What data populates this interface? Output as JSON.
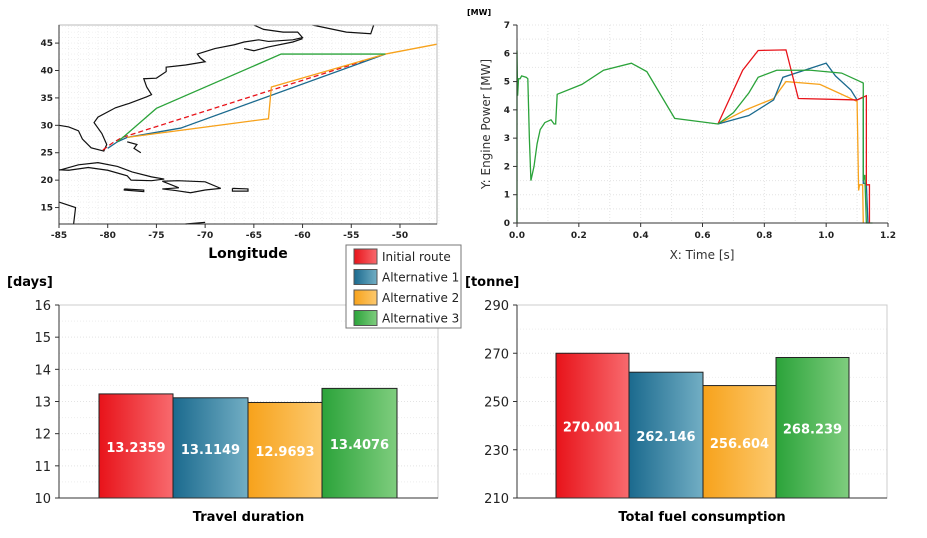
{
  "legend": {
    "position": "center",
    "items": [
      {
        "label": "Initial route",
        "color": "#e8131a"
      },
      {
        "label": "Alternative 1",
        "color": "#1b6a8e"
      },
      {
        "label": "Alternative 2",
        "color": "#f7a21b"
      },
      {
        "label": "Alternative 3",
        "color": "#2ba33a"
      }
    ]
  },
  "chart_data": [
    {
      "type": "line",
      "subtype": "map",
      "xlabel": "Longitude",
      "ylabel": "",
      "xlim": [
        -85,
        -46.2
      ],
      "ylim": [
        12,
        48.3
      ],
      "xticks": [
        -85,
        -80,
        -75,
        -70,
        -65,
        -60,
        -55,
        -50
      ],
      "yticks": [
        15,
        20,
        25,
        30,
        35,
        40,
        45
      ],
      "grid": true,
      "series": [
        {
          "name": "Initial route",
          "style": "dashed",
          "points": [
            [
              -80.5,
              25.5
            ],
            [
              -79.5,
              26.8
            ],
            [
              -78.5,
              27.8
            ],
            [
              -51.5,
              43
            ]
          ]
        },
        {
          "name": "Alternative 1",
          "points": [
            [
              -80,
              25.8
            ],
            [
              -79,
              27
            ],
            [
              -78,
              27.8
            ],
            [
              -72.5,
              29.5
            ],
            [
              -51.5,
              43
            ]
          ]
        },
        {
          "name": "Alternative 2",
          "points": [
            [
              -78,
              27.8
            ],
            [
              -63.5,
              31.2
            ],
            [
              -63.2,
              37
            ],
            [
              -51.5,
              43
            ],
            [
              -46.2,
              44.8
            ]
          ]
        },
        {
          "name": "Alternative 3",
          "points": [
            [
              -79,
              27
            ],
            [
              -78.3,
              28
            ],
            [
              -75,
              33.1
            ],
            [
              -62.2,
              43
            ],
            [
              -51.5,
              43
            ]
          ]
        }
      ]
    },
    {
      "type": "line",
      "unit": "[MW]",
      "xlabel": "X: Time [s]",
      "ylabel": "Y: Engine Power [MW]",
      "xlim": [
        0,
        1.2
      ],
      "ylim": [
        0,
        7
      ],
      "xticks": [
        "0.0",
        "0.2",
        "0.4",
        "0.6",
        "0.8",
        "1.0",
        "1.2"
      ],
      "yticks": [
        "0",
        "1",
        "2",
        "3",
        "4",
        "5",
        "6",
        "7"
      ],
      "grid": true,
      "series": [
        {
          "name": "Initial route",
          "points": [
            [
              0.65,
              3.5
            ],
            [
              0.73,
              5.4
            ],
            [
              0.78,
              6.1
            ],
            [
              0.87,
              6.12
            ],
            [
              0.91,
              4.4
            ],
            [
              1.1,
              4.35
            ],
            [
              1.12,
              4.45
            ],
            [
              1.13,
              4.5
            ],
            [
              1.13,
              1.35
            ],
            [
              1.14,
              1.35
            ],
            [
              1.14,
              0
            ]
          ]
        },
        {
          "name": "Alternative 1",
          "points": [
            [
              0.65,
              3.5
            ],
            [
              0.75,
              3.8
            ],
            [
              0.83,
              4.35
            ],
            [
              0.86,
              5.15
            ],
            [
              1.0,
              5.65
            ],
            [
              1.03,
              5.2
            ],
            [
              1.08,
              4.7
            ],
            [
              1.1,
              4.35
            ],
            [
              1.12,
              4.45
            ],
            [
              1.12,
              1.4
            ],
            [
              1.13,
              1.4
            ],
            [
              1.135,
              0
            ]
          ]
        },
        {
          "name": "Alternative 2",
          "points": [
            [
              0.65,
              3.5
            ],
            [
              0.74,
              4.0
            ],
            [
              0.83,
              4.4
            ],
            [
              0.87,
              5.0
            ],
            [
              0.98,
              4.9
            ],
            [
              1.04,
              4.6
            ],
            [
              1.1,
              4.3
            ],
            [
              1.105,
              1.15
            ],
            [
              1.108,
              1.35
            ],
            [
              1.118,
              1.35
            ],
            [
              1.12,
              0
            ]
          ]
        },
        {
          "name": "Alternative 3",
          "points": [
            [
              0,
              0
            ],
            [
              0,
              6.1
            ],
            [
              0.002,
              4.5
            ],
            [
              0.005,
              5.1
            ],
            [
              0.01,
              5.1
            ],
            [
              0.015,
              5.2
            ],
            [
              0.03,
              5.15
            ],
            [
              0.035,
              5.1
            ],
            [
              0.04,
              3
            ],
            [
              0.045,
              1.5
            ],
            [
              0.055,
              2
            ],
            [
              0.065,
              2.8
            ],
            [
              0.075,
              3.3
            ],
            [
              0.09,
              3.55
            ],
            [
              0.1,
              3.6
            ],
            [
              0.11,
              3.65
            ],
            [
              0.12,
              3.5
            ],
            [
              0.125,
              3.5
            ],
            [
              0.13,
              4.55
            ],
            [
              0.21,
              4.9
            ],
            [
              0.28,
              5.4
            ],
            [
              0.37,
              5.65
            ],
            [
              0.42,
              5.35
            ],
            [
              0.51,
              3.7
            ],
            [
              0.65,
              3.5
            ],
            [
              0.7,
              3.9
            ],
            [
              0.75,
              4.6
            ],
            [
              0.78,
              5.15
            ],
            [
              0.84,
              5.4
            ],
            [
              0.95,
              5.4
            ],
            [
              1.05,
              5.3
            ],
            [
              1.11,
              5.0
            ],
            [
              1.12,
              4.95
            ],
            [
              1.12,
              1.5
            ],
            [
              1.125,
              1.7
            ],
            [
              1.13,
              0
            ],
            [
              1.15,
              0
            ]
          ]
        }
      ]
    },
    {
      "type": "bar",
      "unit": "[days]",
      "xlabel": "Travel duration",
      "ylim": [
        10,
        16
      ],
      "yticks": [
        "10",
        "11",
        "12",
        "13",
        "14",
        "15",
        "16"
      ],
      "categories": [
        "Initial route",
        "Alternative 1",
        "Alternative 2",
        "Alternative 3"
      ],
      "values": [
        13.2359,
        13.1149,
        12.9693,
        13.4076
      ],
      "labels": [
        "13.2359",
        "13.1149",
        "12.9693",
        "13.4076"
      ],
      "grid": true
    },
    {
      "type": "bar",
      "unit": "[tonne]",
      "xlabel": "Total fuel consumption",
      "ylim": [
        210,
        290
      ],
      "yticks": [
        "210",
        "230",
        "250",
        "270",
        "290"
      ],
      "categories": [
        "Initial route",
        "Alternative 1",
        "Alternative 2",
        "Alternative 3"
      ],
      "values": [
        270.001,
        262.146,
        256.604,
        268.239
      ],
      "labels": [
        "270.001",
        "262.146",
        "256.604",
        "268.239"
      ],
      "grid": true
    }
  ]
}
